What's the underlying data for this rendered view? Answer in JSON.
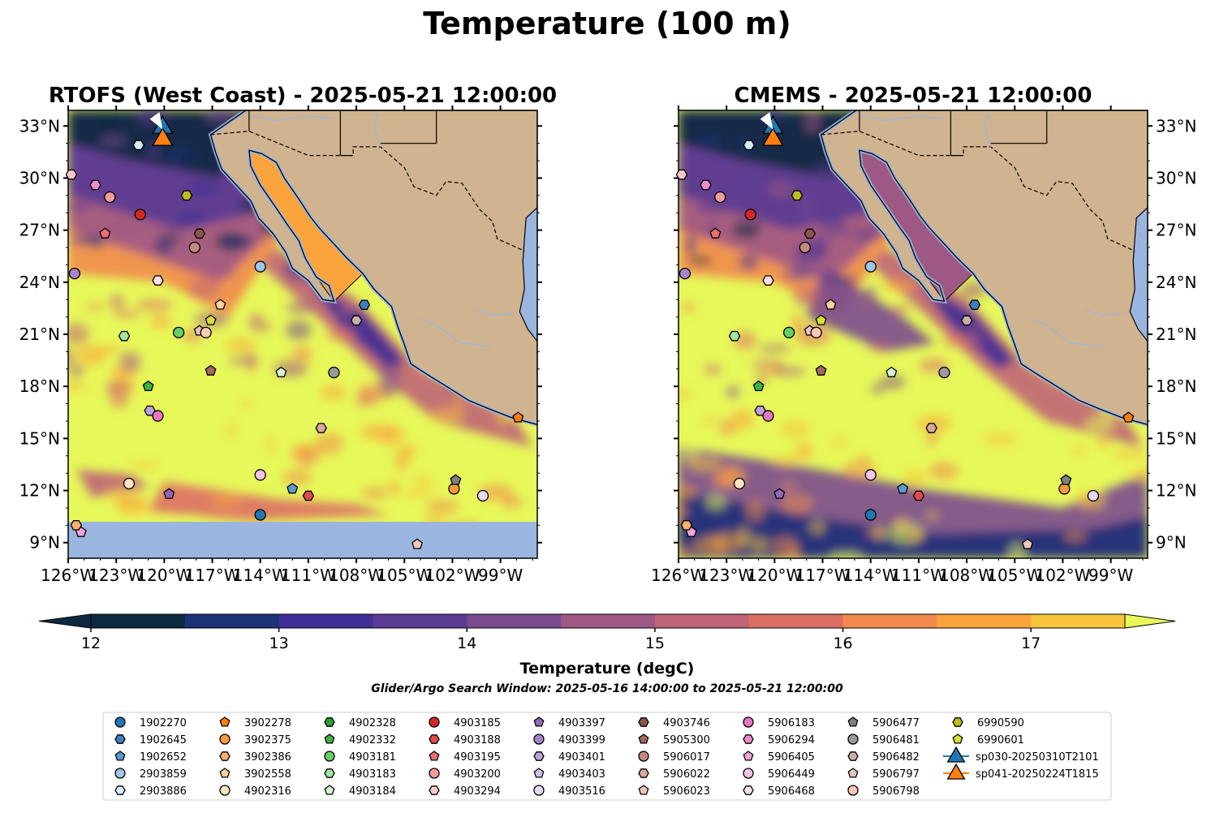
{
  "chart_data": {
    "type": "map",
    "title": "Temperature (100 m)",
    "panels": [
      {
        "title": "RTOFS (West Coast) - 2025-05-21 12:00:00",
        "bottom_band": true
      },
      {
        "title": "CMEMS - 2025-05-21 12:00:00",
        "bottom_band": false
      }
    ],
    "x_ticks": [
      "126°W",
      "123°W",
      "120°W",
      "117°W",
      "114°W",
      "111°W",
      "108°W",
      "105°W",
      "102°W",
      "99°W"
    ],
    "x_tick_values": [
      -126,
      -123,
      -120,
      -117,
      -114,
      -111,
      -108,
      -105,
      -102,
      -99
    ],
    "y_ticks": [
      "33°N",
      "30°N",
      "27°N",
      "24°N",
      "21°N",
      "18°N",
      "15°N",
      "12°N",
      "9°N"
    ],
    "y_tick_values": [
      33,
      30,
      27,
      24,
      21,
      18,
      15,
      12,
      9
    ],
    "xlim": [
      -126,
      -96.7
    ],
    "ylim": [
      8.1,
      33.9
    ],
    "colorbar": {
      "label": "Temperature (degC)",
      "ticks": [
        "12",
        "13",
        "14",
        "15",
        "16",
        "17"
      ],
      "tick_values": [
        12,
        13,
        14,
        15,
        16,
        17
      ],
      "range": [
        12,
        17.5
      ],
      "extend": "both",
      "colors": [
        "#0c2a3f",
        "#1d3178",
        "#3d2f95",
        "#5a3b94",
        "#7a4a8f",
        "#9e5884",
        "#c06477",
        "#dc6f65",
        "#f18a4c",
        "#fba43c",
        "#f7c43b",
        "#e7f85a"
      ]
    },
    "subtitle": "Glider/Argo Search Window: 2025-05-16 14:00:00 to 2025-05-21 12:00:00",
    "legend_position": "bottom",
    "colors": {
      "land": "#d0b38f",
      "water": "#9ab6e0",
      "warm": "#e7f85a"
    },
    "legend": [
      {
        "label": "1902270",
        "marker": "circle",
        "color": "#1f77b4"
      },
      {
        "label": "1902645",
        "marker": "hexagon",
        "color": "#3b7fc0"
      },
      {
        "label": "1902652",
        "marker": "pentagon",
        "color": "#5a9bd5"
      },
      {
        "label": "2903859",
        "marker": "circle",
        "color": "#9ec6ea"
      },
      {
        "label": "2903886",
        "marker": "hexagon",
        "color": "#d6ebfa"
      },
      {
        "label": "3902278",
        "marker": "pentagon",
        "color": "#ff7f0e"
      },
      {
        "label": "3902375",
        "marker": "circle",
        "color": "#ff9a3c"
      },
      {
        "label": "3902386",
        "marker": "hexagon",
        "color": "#ffb070"
      },
      {
        "label": "3902558",
        "marker": "pentagon",
        "color": "#ffd19e"
      },
      {
        "label": "4902316",
        "marker": "circle",
        "color": "#ffe4c2"
      },
      {
        "label": "4902328",
        "marker": "hexagon",
        "color": "#2ca02c"
      },
      {
        "label": "4902332",
        "marker": "pentagon",
        "color": "#3cb43c"
      },
      {
        "label": "4903181",
        "marker": "circle",
        "color": "#67cf67"
      },
      {
        "label": "4903183",
        "marker": "hexagon",
        "color": "#a4e5a0"
      },
      {
        "label": "4903184",
        "marker": "pentagon",
        "color": "#d6f5cf"
      },
      {
        "label": "4903185",
        "marker": "circle",
        "color": "#d62728"
      },
      {
        "label": "4903188",
        "marker": "hexagon",
        "color": "#e04a4a"
      },
      {
        "label": "4903195",
        "marker": "pentagon",
        "color": "#ea7070"
      },
      {
        "label": "4903200",
        "marker": "circle",
        "color": "#f49c9c"
      },
      {
        "label": "4903294",
        "marker": "hexagon",
        "color": "#fbc8c8"
      },
      {
        "label": "4903397",
        "marker": "pentagon",
        "color": "#9467bd"
      },
      {
        "label": "4903399",
        "marker": "circle",
        "color": "#a884cc"
      },
      {
        "label": "4903401",
        "marker": "hexagon",
        "color": "#bea0de"
      },
      {
        "label": "4903403",
        "marker": "pentagon",
        "color": "#d4bfee"
      },
      {
        "label": "4903516",
        "marker": "circle",
        "color": "#e6dafb"
      },
      {
        "label": "4903746",
        "marker": "hexagon",
        "color": "#8c564b"
      },
      {
        "label": "5905300",
        "marker": "pentagon",
        "color": "#a06a5e"
      },
      {
        "label": "5906017",
        "marker": "circle",
        "color": "#c08a7e"
      },
      {
        "label": "5906022",
        "marker": "hexagon",
        "color": "#d8a89c"
      },
      {
        "label": "5906023",
        "marker": "pentagon",
        "color": "#efc8bd"
      },
      {
        "label": "5906183",
        "marker": "circle",
        "color": "#e377c2"
      },
      {
        "label": "5906294",
        "marker": "hexagon",
        "color": "#ea8ecd"
      },
      {
        "label": "5906405",
        "marker": "pentagon",
        "color": "#f0a6d8"
      },
      {
        "label": "5906449",
        "marker": "circle",
        "color": "#f6c4e6"
      },
      {
        "label": "5906468",
        "marker": "hexagon",
        "color": "#fbe0f1"
      },
      {
        "label": "5906477",
        "marker": "pentagon",
        "color": "#7f7f7f"
      },
      {
        "label": "5906481",
        "marker": "circle",
        "color": "#9a9a9a"
      },
      {
        "label": "5906482",
        "marker": "hexagon",
        "color": "#c8b0a8"
      },
      {
        "label": "5906797",
        "marker": "pentagon",
        "color": "#e8c6bc"
      },
      {
        "label": "5906798",
        "marker": "circle",
        "color": "#f9c9b6"
      },
      {
        "label": "6990590",
        "marker": "hexagon",
        "color": "#bcbd22"
      },
      {
        "label": "6990601",
        "marker": "pentagon",
        "color": "#dbdb3a"
      },
      {
        "label": "sp030-20250310T2101",
        "marker": "triangle",
        "color": "#1f77b4"
      },
      {
        "label": "sp041-20250224T1815",
        "marker": "triangle",
        "color": "#ff7f0e"
      }
    ],
    "points": [
      {
        "id": "1902270",
        "lon": -114.0,
        "lat": 10.6
      },
      {
        "id": "1902645",
        "lon": -107.5,
        "lat": 22.7
      },
      {
        "id": "1902652",
        "lon": -112.0,
        "lat": 12.1
      },
      {
        "id": "2903859",
        "lon": -114.0,
        "lat": 24.9
      },
      {
        "id": "2903886",
        "lon": -121.6,
        "lat": 31.9
      },
      {
        "id": "3902278",
        "lon": -97.9,
        "lat": 16.2
      },
      {
        "id": "3902375",
        "lon": -101.9,
        "lat": 12.1
      },
      {
        "id": "4902316",
        "lon": -122.2,
        "lat": 12.4
      },
      {
        "id": "4902328",
        "lon": -118.6,
        "lat": 29.0
      },
      {
        "id": "4903181",
        "lon": -119.1,
        "lat": 21.1
      },
      {
        "id": "4903183",
        "lon": -122.5,
        "lat": 20.9
      },
      {
        "id": "4903184",
        "lon": -112.7,
        "lat": 18.8
      },
      {
        "id": "4902332",
        "lon": -121.0,
        "lat": 18.0
      },
      {
        "id": "4903185",
        "lon": -121.5,
        "lat": 27.9
      },
      {
        "id": "4903188",
        "lon": -111.0,
        "lat": 11.7
      },
      {
        "id": "4903195",
        "lon": -123.7,
        "lat": 26.8
      },
      {
        "id": "4903200",
        "lon": -123.4,
        "lat": 28.9
      },
      {
        "id": "4903294",
        "lon": -125.8,
        "lat": 30.2
      },
      {
        "id": "4903397",
        "lon": -119.7,
        "lat": 11.8
      },
      {
        "id": "4903399",
        "lon": -125.6,
        "lat": 24.5
      },
      {
        "id": "4903401",
        "lon": -120.9,
        "lat": 16.6
      },
      {
        "id": "4903516",
        "lon": -100.1,
        "lat": 11.7
      },
      {
        "id": "4903746",
        "lon": -117.8,
        "lat": 26.8
      },
      {
        "id": "5905300",
        "lon": -117.1,
        "lat": 18.9
      },
      {
        "id": "5906017",
        "lon": -118.1,
        "lat": 26.0
      },
      {
        "id": "5906022",
        "lon": -110.2,
        "lat": 15.6
      },
      {
        "id": "5906023",
        "lon": -104.2,
        "lat": 8.9
      },
      {
        "id": "5906183",
        "lon": -120.4,
        "lat": 16.3
      },
      {
        "id": "5906294",
        "lon": -124.3,
        "lat": 29.6
      },
      {
        "id": "5906405",
        "lon": -125.2,
        "lat": 9.6
      },
      {
        "id": "5906449",
        "lon": -114.0,
        "lat": 12.9
      },
      {
        "id": "5906468",
        "lon": -120.4,
        "lat": 24.1
      },
      {
        "id": "5906477",
        "lon": -101.8,
        "lat": 12.6
      },
      {
        "id": "5906481",
        "lon": -109.4,
        "lat": 18.8
      },
      {
        "id": "5906482",
        "lon": -108.0,
        "lat": 21.8
      },
      {
        "id": "5906797",
        "lon": -117.8,
        "lat": 21.2
      },
      {
        "id": "5906798",
        "lon": -117.4,
        "lat": 21.1
      },
      {
        "id": "3902386",
        "lon": -125.5,
        "lat": 10.0
      },
      {
        "id": "3902558",
        "lon": -116.5,
        "lat": 22.7
      },
      {
        "id": "6990590",
        "lon": -118.6,
        "lat": 29.0
      },
      {
        "id": "6990601",
        "lon": -117.1,
        "lat": 21.8
      }
    ],
    "gliders": [
      {
        "id": "sp030-20250310T2101",
        "lon": -120.1,
        "lat": 33.0
      },
      {
        "id": "sp041-20250224T1815",
        "lon": -120.1,
        "lat": 32.3
      }
    ]
  }
}
